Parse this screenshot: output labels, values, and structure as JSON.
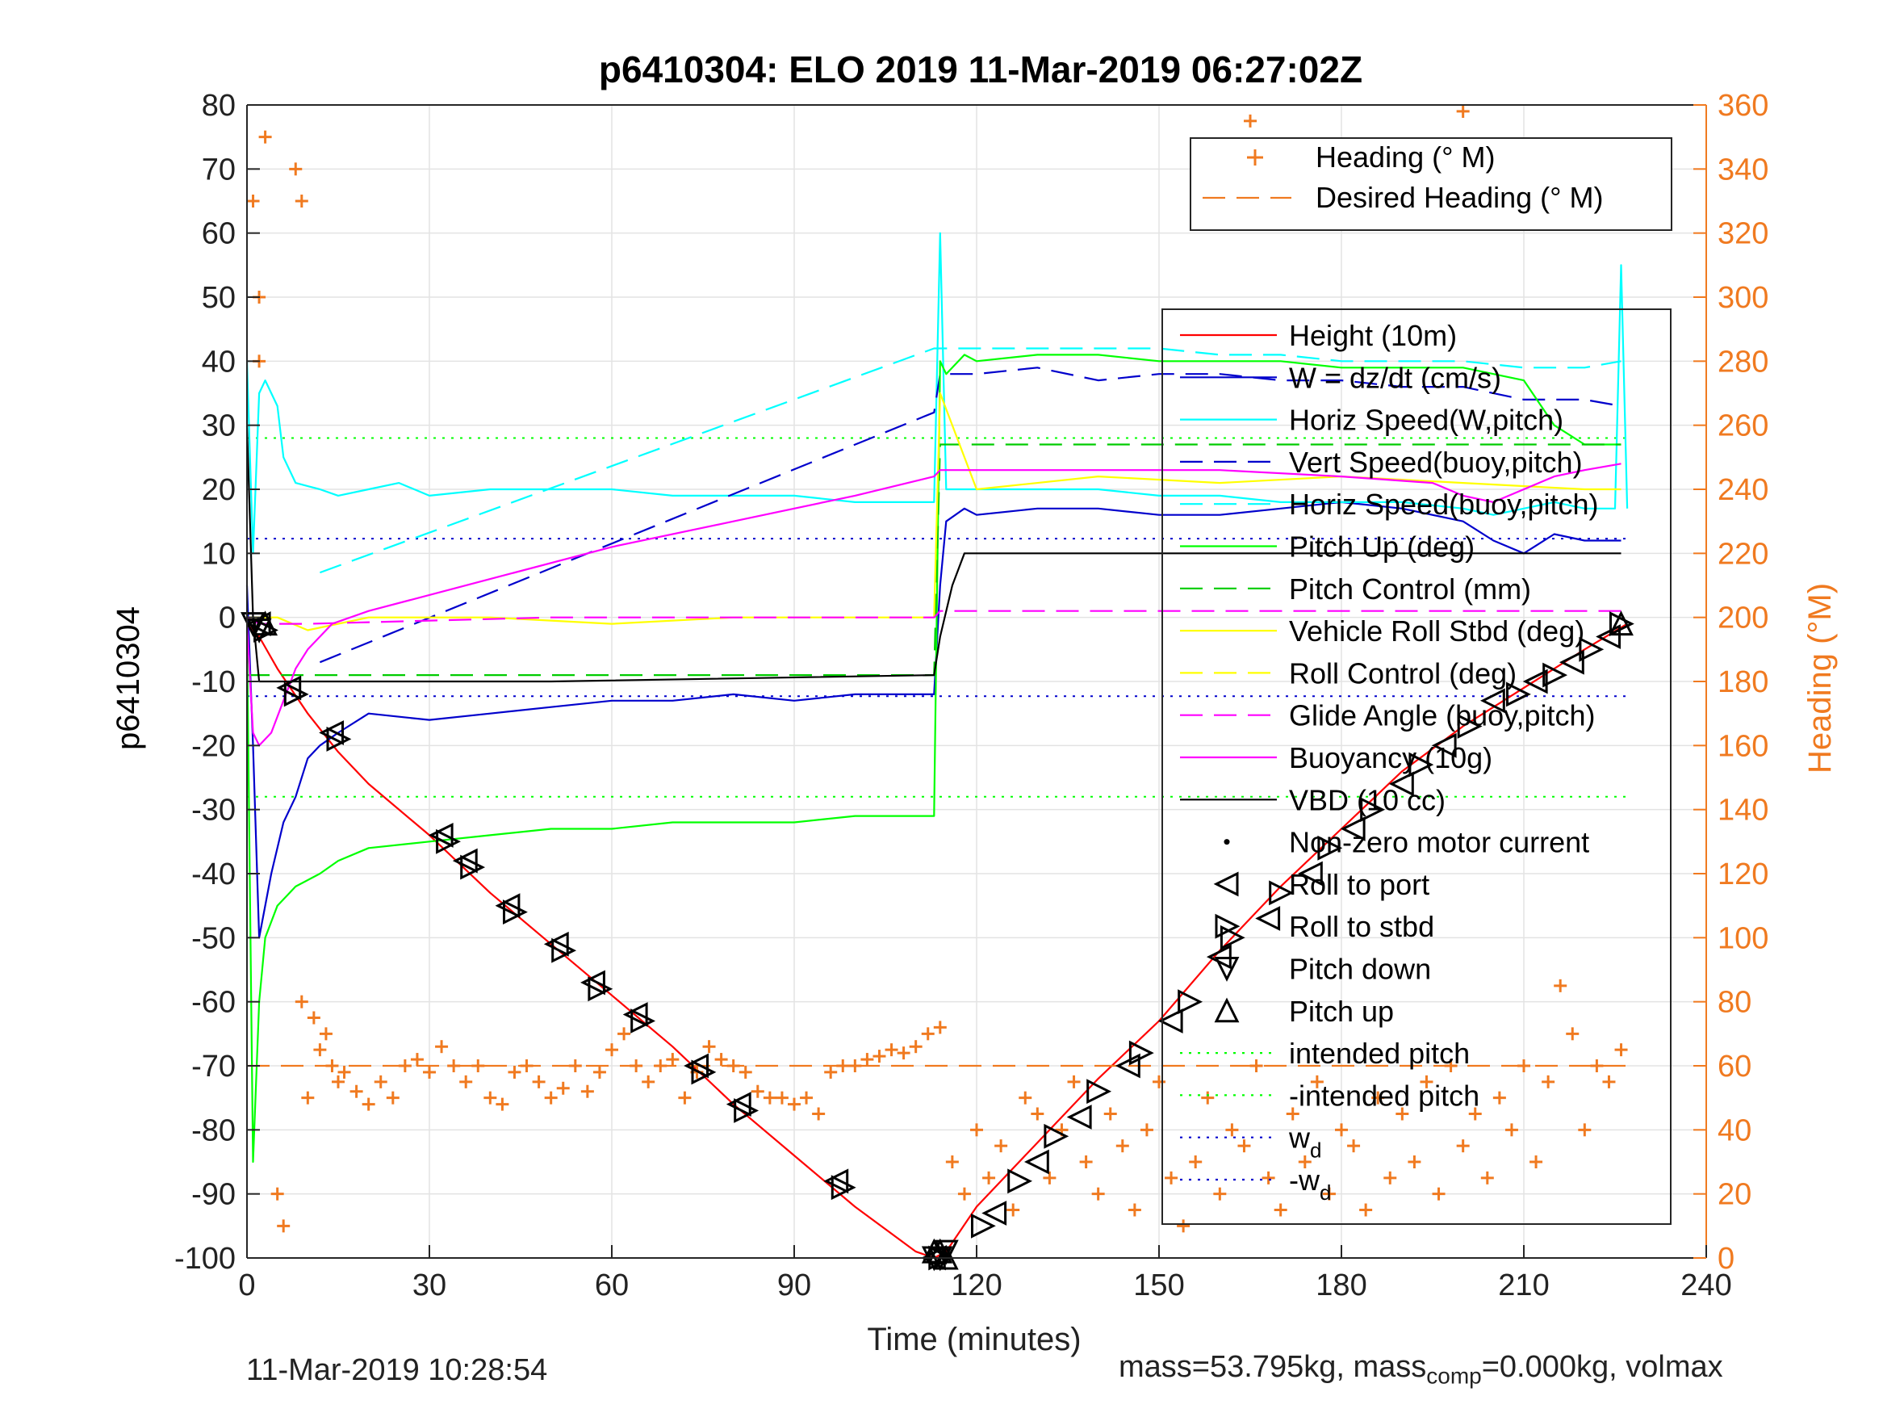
{
  "chart_data": {
    "type": "line",
    "title": "p6410304: ELO 2019 11-Mar-2019 06:27:02Z",
    "xlabel": "Time (minutes)",
    "ylabel": "p6410304",
    "y2label": "Heading (°M)",
    "xlim": [
      0,
      240
    ],
    "ylim": [
      -100,
      80
    ],
    "y2lim": [
      0,
      360
    ],
    "xticks": [
      0,
      30,
      60,
      90,
      120,
      150,
      180,
      210,
      240
    ],
    "yticks": [
      80,
      70,
      60,
      50,
      40,
      30,
      20,
      10,
      0,
      -10,
      -20,
      -30,
      -40,
      -50,
      -60,
      -70,
      -80,
      -90,
      -100
    ],
    "y2ticks": [
      360,
      340,
      320,
      300,
      280,
      260,
      240,
      220,
      200,
      180,
      160,
      140,
      120,
      100,
      80,
      60,
      40,
      20,
      0
    ],
    "grid": true,
    "legend_top": [
      {
        "label": "Heading (° M)",
        "color": "#f07a20",
        "style": "plus"
      },
      {
        "label": "Desired Heading (° M)",
        "color": "#f07a20",
        "style": "dash"
      }
    ],
    "legend_main": [
      {
        "label": "Height (10m)",
        "color": "#ff0000",
        "style": "solid"
      },
      {
        "label": "W = dz/dt (cm/s)",
        "color": "#0000cc",
        "style": "solid"
      },
      {
        "label": "Horiz Speed(W,pitch)",
        "color": "#00ffff",
        "style": "solid"
      },
      {
        "label": "Vert Speed(buoy,pitch)",
        "color": "#0000cc",
        "style": "dash"
      },
      {
        "label": "Horiz Speed(buoy,pitch)",
        "color": "#00ffff",
        "style": "dash"
      },
      {
        "label": "Pitch Up (deg)",
        "color": "#00ff00",
        "style": "solid"
      },
      {
        "label": "Pitch Control (mm)",
        "color": "#00cc00",
        "style": "dash"
      },
      {
        "label": "Vehicle Roll Stbd (deg)",
        "color": "#ffff00",
        "style": "solid"
      },
      {
        "label": "Roll Control (deg)",
        "color": "#ffff00",
        "style": "dash"
      },
      {
        "label": "Glide Angle (buoy,pitch)",
        "color": "#ff00ff",
        "style": "dash"
      },
      {
        "label": "Buoyancy (10g)",
        "color": "#ff00ff",
        "style": "solid"
      },
      {
        "label": "VBD (10 cc)",
        "color": "#000000",
        "style": "solid"
      },
      {
        "label": "Non-zero motor current",
        "color": "#000000",
        "style": "dot"
      },
      {
        "label": "Roll to port",
        "color": "#000000",
        "style": "tri-left"
      },
      {
        "label": "Roll to stbd",
        "color": "#000000",
        "style": "tri-right"
      },
      {
        "label": "Pitch down",
        "color": "#000000",
        "style": "tri-down"
      },
      {
        "label": "Pitch up",
        "color": "#000000",
        "style": "tri-up"
      },
      {
        "label": "intended pitch",
        "color": "#00ff00",
        "style": "dotted"
      },
      {
        "label": "-intended pitch",
        "color": "#00ff00",
        "style": "dotted"
      },
      {
        "label": "w",
        "sub": "d",
        "color": "#0000cc",
        "style": "dotted"
      },
      {
        "label": "-w",
        "sub": "d",
        "color": "#0000cc",
        "style": "dotted"
      }
    ],
    "series": [
      {
        "name": "Height (10m)",
        "color": "#ff0000",
        "axis": "left",
        "x": [
          0,
          2,
          5,
          10,
          15,
          20,
          30,
          40,
          50,
          60,
          70,
          80,
          90,
          100,
          110,
          113,
          115,
          120,
          130,
          140,
          150,
          160,
          170,
          180,
          190,
          200,
          210,
          220,
          227
        ],
        "y": [
          -1,
          -3,
          -8,
          -15,
          -21,
          -26,
          -34,
          -43,
          -51,
          -59,
          -67,
          -76,
          -84,
          -92,
          -99,
          -100,
          -99,
          -92,
          -82,
          -72,
          -63,
          -52,
          -42,
          -33,
          -24,
          -17,
          -11,
          -5,
          -1
        ]
      },
      {
        "name": "W = dz/dt (cm/s)",
        "color": "#0000cc",
        "axis": "left",
        "x": [
          0,
          1,
          2,
          4,
          6,
          8,
          10,
          12,
          15,
          20,
          30,
          40,
          50,
          60,
          70,
          80,
          90,
          100,
          110,
          113,
          114,
          115,
          118,
          120,
          130,
          140,
          150,
          160,
          170,
          180,
          190,
          200,
          205,
          210,
          215,
          220,
          226
        ],
        "y": [
          5,
          -20,
          -50,
          -40,
          -32,
          -28,
          -22,
          -20,
          -18,
          -15,
          -16,
          -15,
          -14,
          -13,
          -13,
          -12,
          -13,
          -12,
          -12,
          -12,
          5,
          15,
          17,
          16,
          17,
          17,
          16,
          16,
          17,
          18,
          17,
          15,
          12,
          10,
          13,
          12,
          12
        ]
      },
      {
        "name": "Horiz Speed(W,pitch)",
        "color": "#00ffff",
        "axis": "left",
        "x": [
          0,
          1,
          2,
          3,
          5,
          6,
          8,
          12,
          15,
          20,
          25,
          30,
          40,
          50,
          60,
          70,
          80,
          90,
          100,
          110,
          113,
          114,
          115,
          118,
          120,
          130,
          140,
          150,
          160,
          170,
          180,
          190,
          200,
          205,
          210,
          215,
          220,
          225,
          226,
          227
        ],
        "y": [
          40,
          10,
          35,
          37,
          33,
          25,
          21,
          20,
          19,
          20,
          21,
          19,
          20,
          20,
          20,
          19,
          19,
          19,
          18,
          18,
          18,
          60,
          20,
          20,
          20,
          20,
          20,
          19,
          19,
          18,
          18,
          18,
          17,
          16,
          17,
          18,
          17,
          17,
          55,
          17
        ]
      },
      {
        "name": "Vert Speed(buoy,pitch)",
        "color": "#0000cc",
        "axis": "left",
        "x": [
          12,
          113,
          114,
          120,
          130,
          140,
          150,
          160,
          170,
          180,
          190,
          200,
          210,
          220,
          226
        ],
        "y": [
          -7,
          32,
          38,
          38,
          39,
          37,
          38,
          38,
          37,
          37,
          36,
          36,
          34,
          34,
          33
        ]
      },
      {
        "name": "Horiz Speed(buoy,pitch)",
        "color": "#00ffff",
        "axis": "left",
        "x": [
          12,
          113,
          114,
          120,
          130,
          140,
          150,
          160,
          170,
          180,
          190,
          200,
          210,
          220,
          226
        ],
        "y": [
          7,
          42,
          42,
          42,
          42,
          42,
          42,
          41,
          41,
          40,
          40,
          40,
          39,
          39,
          40
        ]
      },
      {
        "name": "Pitch Up (deg)",
        "color": "#00ff00",
        "axis": "left",
        "x": [
          0,
          1,
          2,
          3,
          5,
          8,
          12,
          15,
          20,
          30,
          40,
          50,
          60,
          70,
          80,
          90,
          100,
          110,
          113,
          114,
          115,
          118,
          120,
          130,
          140,
          150,
          160,
          170,
          180,
          190,
          200,
          210,
          215,
          220,
          226
        ],
        "y": [
          -2,
          -85,
          -60,
          -50,
          -45,
          -42,
          -40,
          -38,
          -36,
          -35,
          -34,
          -33,
          -33,
          -32,
          -32,
          -32,
          -31,
          -31,
          -31,
          40,
          38,
          41,
          40,
          41,
          41,
          40,
          40,
          40,
          39,
          39,
          39,
          37,
          30,
          27,
          27
        ]
      },
      {
        "name": "Pitch Control (mm)",
        "color": "#00cc00",
        "axis": "left",
        "x": [
          0,
          10,
          50,
          113,
          114,
          226
        ],
        "y": [
          -9,
          -9,
          -9,
          -9,
          27,
          27
        ]
      },
      {
        "name": "Vehicle Roll Stbd (deg)",
        "color": "#ffff00",
        "axis": "left",
        "x": [
          0,
          5,
          10,
          20,
          40,
          60,
          80,
          100,
          113,
          114,
          120,
          140,
          160,
          180,
          200,
          220,
          226
        ],
        "y": [
          0,
          0,
          -2,
          0,
          0,
          -1,
          0,
          0,
          0,
          35,
          20,
          22,
          21,
          22,
          21,
          20,
          20
        ]
      },
      {
        "name": "Glide Angle (buoy,pitch)",
        "color": "#ff00ff",
        "axis": "left",
        "x": [
          0,
          2,
          10,
          50,
          113,
          114,
          226
        ],
        "y": [
          0,
          -1,
          -1,
          0,
          0,
          1,
          1
        ]
      },
      {
        "name": "Buoyancy (10g)",
        "color": "#ff00ff",
        "axis": "left",
        "x": [
          0,
          1,
          2,
          4,
          6,
          8,
          10,
          14,
          20,
          40,
          60,
          80,
          100,
          113,
          114,
          120,
          140,
          160,
          180,
          195,
          200,
          205,
          210,
          215,
          220,
          226
        ],
        "y": [
          -1,
          -18,
          -20,
          -18,
          -13,
          -8,
          -5,
          -1,
          1,
          6,
          11,
          15,
          19,
          22,
          23,
          23,
          23,
          23,
          22,
          21,
          19,
          18,
          20,
          22,
          23,
          24
        ]
      },
      {
        "name": "VBD (10 cc)",
        "color": "#000000",
        "axis": "left",
        "x": [
          0,
          1,
          2,
          10,
          50,
          113,
          114,
          116,
          118,
          120,
          150,
          200,
          220,
          226
        ],
        "y": [
          30,
          0,
          -10,
          -10,
          -10,
          -9,
          -3,
          5,
          10,
          10,
          10,
          10,
          10,
          10
        ]
      },
      {
        "name": "Desired Heading (° M)",
        "color": "#f07a20",
        "axis": "right",
        "x": [
          0,
          227
        ],
        "y": [
          60,
          60
        ]
      }
    ],
    "reference_lines": [
      {
        "name": "intended pitch",
        "y": 28,
        "x": [
          0,
          227
        ],
        "color": "#00ff00"
      },
      {
        "name": "-intended pitch",
        "y": -28,
        "x": [
          0,
          227
        ],
        "color": "#00ff00"
      },
      {
        "name": "w_d",
        "y": 12.3,
        "x": [
          0,
          227
        ],
        "color": "#0000cc"
      },
      {
        "name": "-w_d",
        "y": -12.3,
        "x": [
          0,
          227
        ],
        "color": "#0000cc"
      }
    ],
    "heading_points": {
      "x": [
        1,
        2,
        2,
        3,
        5,
        6,
        9,
        10,
        8,
        9,
        11,
        12,
        13,
        14,
        15,
        16,
        18,
        20,
        22,
        24,
        26,
        28,
        30,
        32,
        34,
        36,
        38,
        40,
        42,
        44,
        46,
        48,
        50,
        52,
        54,
        56,
        58,
        60,
        62,
        64,
        66,
        68,
        70,
        72,
        74,
        76,
        78,
        80,
        82,
        84,
        86,
        88,
        90,
        92,
        94,
        96,
        98,
        100,
        102,
        104,
        106,
        108,
        110,
        112,
        114,
        116,
        118,
        120,
        122,
        124,
        126,
        128,
        130,
        132,
        134,
        136,
        138,
        140,
        142,
        144,
        146,
        148,
        150,
        152,
        154,
        156,
        158,
        160,
        162,
        164,
        166,
        168,
        170,
        172,
        174,
        176,
        178,
        180,
        182,
        184,
        186,
        188,
        190,
        192,
        194,
        196,
        198,
        200,
        202,
        204,
        206,
        208,
        210,
        212,
        214,
        216,
        218,
        220,
        222,
        224,
        226,
        165,
        168,
        200
      ],
      "y": [
        330,
        300,
        280,
        350,
        20,
        10,
        80,
        50,
        340,
        330,
        75,
        65,
        70,
        60,
        55,
        58,
        52,
        48,
        55,
        50,
        60,
        62,
        58,
        66,
        60,
        55,
        60,
        50,
        48,
        58,
        60,
        55,
        50,
        53,
        60,
        52,
        58,
        65,
        70,
        60,
        55,
        60,
        62,
        50,
        58,
        66,
        62,
        60,
        58,
        52,
        50,
        50,
        48,
        50,
        45,
        58,
        60,
        60,
        62,
        63,
        65,
        64,
        66,
        70,
        72,
        30,
        20,
        40,
        25,
        35,
        15,
        50,
        45,
        25,
        40,
        55,
        30,
        20,
        45,
        35,
        15,
        40,
        55,
        25,
        10,
        30,
        50,
        20,
        40,
        35,
        60,
        25,
        15,
        45,
        30,
        55,
        20,
        40,
        35,
        15,
        50,
        25,
        45,
        30,
        55,
        20,
        60,
        35,
        45,
        25,
        50,
        40,
        60,
        30,
        55,
        85,
        70,
        40,
        60,
        55,
        65,
        355,
        345,
        358
      ]
    },
    "motor_markers": {
      "roll_to_port": {
        "x": [
          2,
          7,
          14,
          32,
          36,
          43,
          51,
          57,
          64,
          74,
          81,
          97,
          113,
          123,
          130,
          137,
          145,
          152,
          160,
          168,
          175,
          182,
          190,
          197,
          205,
          212,
          218,
          224
        ],
        "y": [
          -1,
          -11,
          -18,
          -34,
          -38,
          -45,
          -51,
          -57,
          -62,
          -70,
          -76,
          -88,
          -100,
          -93,
          -85,
          -78,
          -70,
          -63,
          -53,
          -47,
          -40,
          -33,
          -26,
          -20,
          -13,
          -10,
          -7,
          -3
        ]
      },
      "roll_to_stbd": {
        "x": [
          3,
          8,
          15,
          33,
          37,
          44,
          52,
          58,
          65,
          75,
          82,
          98,
          114,
          121,
          127,
          133,
          140,
          147,
          155,
          162,
          170,
          178,
          185,
          193,
          201,
          209,
          215,
          221,
          226
        ],
        "y": [
          -2,
          -12,
          -19,
          -35,
          -39,
          -46,
          -52,
          -58,
          -63,
          -71,
          -77,
          -89,
          -100,
          -95,
          -88,
          -81,
          -74,
          -68,
          -60,
          -50,
          -43,
          -36,
          -30,
          -23,
          -17,
          -12,
          -9,
          -5,
          -1
        ]
      },
      "pitch_down": {
        "x": [
          1,
          2,
          113,
          114,
          115
        ],
        "y": [
          -1,
          -2,
          -100,
          -100,
          -99
        ]
      },
      "pitch_up": {
        "x": [
          3,
          113,
          114,
          115,
          226
        ],
        "y": [
          -1,
          -99,
          -99,
          -100,
          -1
        ]
      }
    }
  },
  "footer": {
    "timestamp": "11-Mar-2019 10:28:54",
    "mass_text_1": "mass=53.795kg, mass",
    "mass_sub": "comp",
    "mass_text_2": "=0.000kg, volmax"
  }
}
